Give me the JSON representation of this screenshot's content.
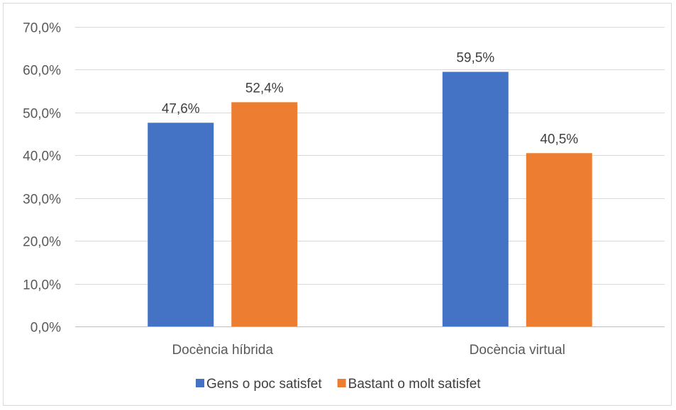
{
  "chart_data": {
    "type": "bar",
    "categories": [
      "Docència híbrida",
      "Docència virtual"
    ],
    "series": [
      {
        "name": "Gens o poc satisfet",
        "values": [
          47.6,
          59.5
        ],
        "labels": [
          "47,6%",
          "59,5%"
        ],
        "color": "#4472C4"
      },
      {
        "name": "Bastant o molt satisfet",
        "values": [
          52.4,
          40.5
        ],
        "labels": [
          "52,4%",
          "40,5%"
        ],
        "color": "#ED7D31"
      }
    ],
    "ylim": [
      0,
      70
    ],
    "yticks": [
      0,
      10,
      20,
      30,
      40,
      50,
      60,
      70
    ],
    "ytick_labels": [
      "0,0%",
      "10,0%",
      "20,0%",
      "30,0%",
      "40,0%",
      "50,0%",
      "60,0%",
      "70,0%"
    ],
    "grid": true,
    "legend_position": "bottom",
    "title": "",
    "xlabel": "",
    "ylabel": ""
  }
}
